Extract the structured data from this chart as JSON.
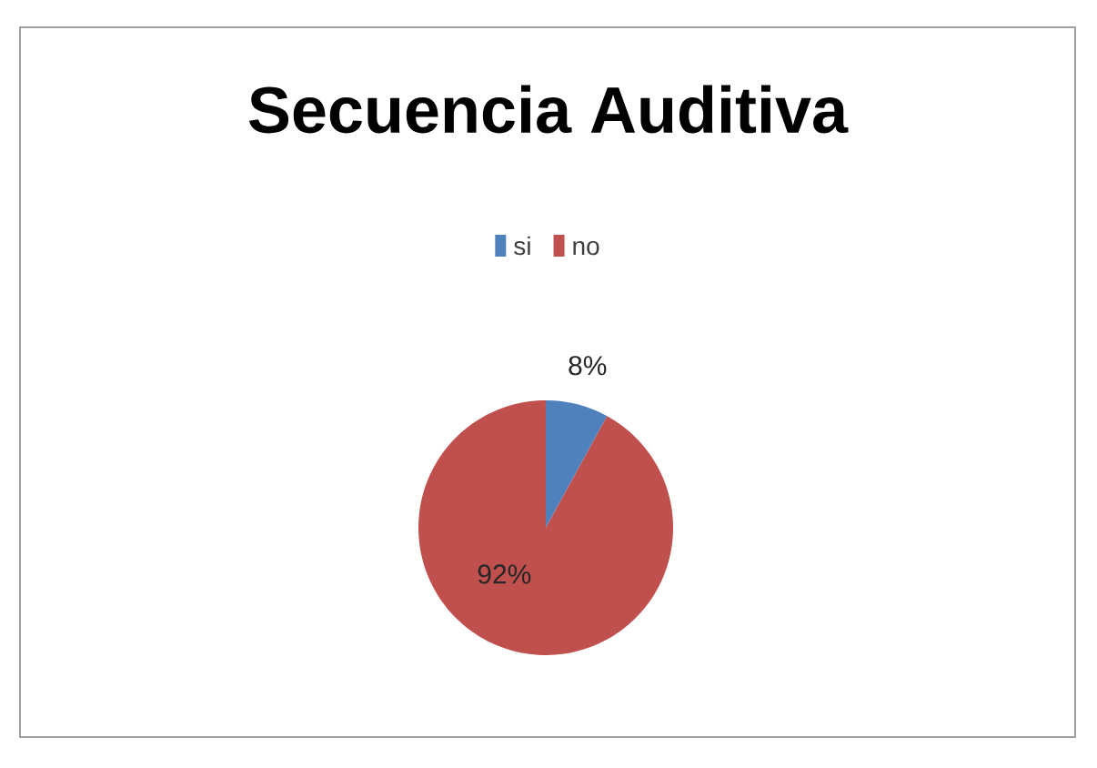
{
  "chart_data": {
    "type": "pie",
    "title": "Secuencia Auditiva",
    "categories": [
      "si",
      "no"
    ],
    "values": [
      8,
      92
    ],
    "colors": [
      "#4f81bd",
      "#c0504d"
    ],
    "value_labels": [
      "8%",
      "92%"
    ],
    "legend": "top"
  }
}
